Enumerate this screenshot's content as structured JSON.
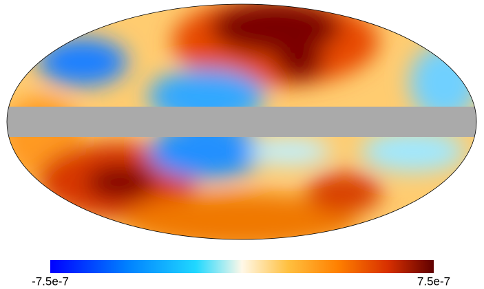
{
  "chart_data": {
    "type": "mollweide",
    "colorbar": {
      "lim": [
        -7.5e-07,
        7.5e-07
      ],
      "ticks": [
        -7.5e-07,
        7.5e-07
      ]
    }
  }
}
